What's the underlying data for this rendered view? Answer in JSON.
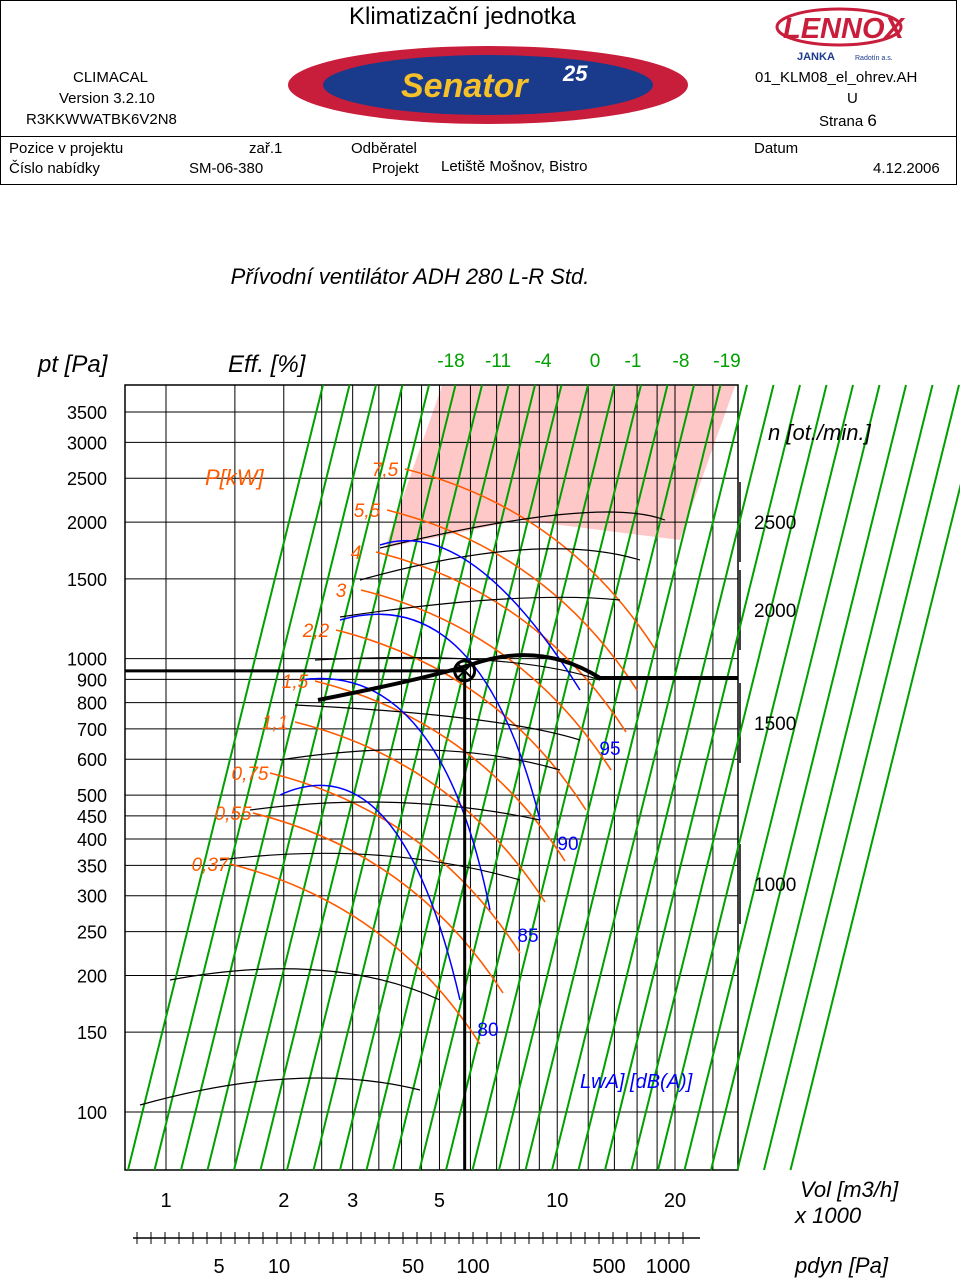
{
  "header": {
    "title": "Klimatizační jednotka",
    "software": "CLIMACAL",
    "version": "Version 3.2.10",
    "unit_code": "R3KKWWATBK6V2N8",
    "file": "01_KLM08_el_ohrev.AH",
    "file_suffix": "U",
    "page_label": "Strana",
    "page_number": "6",
    "position_label": "Pozice v projektu",
    "position_value": "zař.1",
    "customer_label": "Odběratel",
    "date_label": "Datum",
    "offer_label": "Číslo nabídky",
    "offer_value": "SM-06-380",
    "project_label": "Projekt",
    "project_value": "Letiště Mošnov, Bistro",
    "date_value": "4.12.2006"
  },
  "logos": {
    "senator_text": "Senator",
    "senator_number": "25",
    "lennox_text": "LENNOX",
    "janka_text": "JANKA",
    "radotin_text": "Radotín a.s."
  },
  "chart_title": "Přívodní ventilátor  ADH 280 L-R Std.",
  "chart_data": {
    "type": "line",
    "labels": {
      "pressure": "pt [Pa]",
      "efficiency": "Eff. [%]",
      "power": "P[kW]",
      "speed": "n [ot./min.]",
      "noise": "LwA] [dB(A)]",
      "volume": "Vol [m3/h]",
      "volume_multiplier": "x 1000",
      "dynamic_pressure": "pdyn [Pa]"
    },
    "pressure_ticks": [
      "3500",
      "3000",
      "2500",
      "2000",
      "1500",
      "1000",
      "900",
      "800",
      "700",
      "600",
      "500",
      "450",
      "400",
      "350",
      "300",
      "250",
      "200",
      "150",
      "100"
    ],
    "pressure_values": [
      3500,
      3000,
      2500,
      2000,
      1500,
      1000,
      900,
      800,
      700,
      600,
      500,
      450,
      400,
      350,
      300,
      250,
      200,
      150,
      100
    ],
    "ylim": [
      100,
      3500
    ],
    "volume_ticks": [
      "1",
      "2",
      "3",
      "5",
      "10",
      "20"
    ],
    "volume_values": [
      1,
      2,
      3,
      5,
      10,
      20
    ],
    "dynamic_pressure_ticks": [
      "5",
      "10",
      "50",
      "100",
      "500",
      "1000"
    ],
    "dynamic_pressure_values": [
      5,
      10,
      50,
      100,
      500,
      1000
    ],
    "efficiency_ticks": [
      "-18",
      "-11",
      "-4",
      "0",
      "-1",
      "-8",
      "-19"
    ],
    "speed_ticks": [
      "2500",
      "2000",
      "1500",
      "1000"
    ],
    "speed_values": [
      2500,
      2000,
      1500,
      1000
    ],
    "power_ticks": [
      "7,5",
      "5,5",
      "4",
      "3",
      "2,2",
      "1,5",
      "1,1",
      "0,75",
      "0,55",
      "0,37"
    ],
    "noise_ticks": [
      "95",
      "90",
      "85",
      "80"
    ],
    "operating_point": {
      "volume": 5.8,
      "pressure": 940
    },
    "colors": {
      "efficiency": "#00a000",
      "power": "#ff5a00",
      "noise": "#0000ff",
      "speed": "#000000",
      "forbidden_zone": "#ffc8c8"
    }
  }
}
